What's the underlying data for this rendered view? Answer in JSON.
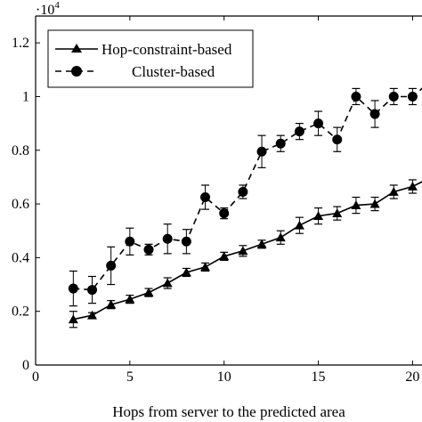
{
  "chart_data": {
    "type": "line",
    "title": "",
    "xlabel": "Hops from server to the predicted area",
    "ylabel": "",
    "y_multiplier": "·10",
    "y_multiplier_exp": "4",
    "xlim": [
      0,
      20.5
    ],
    "ylim": [
      0,
      1.3
    ],
    "x_ticks": [
      0,
      5,
      10,
      15,
      20
    ],
    "x_tick_labels": [
      "0",
      "5",
      "10",
      "15",
      "20"
    ],
    "y_ticks": [
      0,
      0.2,
      0.4,
      0.6,
      0.8,
      1.0,
      1.2
    ],
    "y_tick_labels": [
      "0",
      "0.2",
      "0.4",
      "0.6",
      "0.8",
      "1",
      "1.2"
    ],
    "grid": false,
    "legend_position": "top-left",
    "x": [
      2,
      3,
      4,
      5,
      6,
      7,
      8,
      9,
      10,
      11,
      12,
      13,
      14,
      15,
      16,
      17,
      18,
      19,
      20,
      21
    ],
    "series": [
      {
        "name": "Hop-constraint-based",
        "marker": "triangle",
        "line_style": "solid",
        "color": "#000000",
        "values": [
          0.17,
          0.185,
          0.225,
          0.245,
          0.27,
          0.305,
          0.345,
          0.365,
          0.405,
          0.425,
          0.45,
          0.475,
          0.52,
          0.555,
          0.565,
          0.595,
          0.6,
          0.645,
          0.665,
          0.7
        ],
        "error": [
          0.03,
          0.01,
          0.015,
          0.015,
          0.015,
          0.02,
          0.015,
          0.015,
          0.015,
          0.02,
          0.015,
          0.025,
          0.03,
          0.03,
          0.025,
          0.03,
          0.025,
          0.025,
          0.025,
          0.03
        ]
      },
      {
        "name": "Cluster-based",
        "marker": "circle",
        "line_style": "dashed",
        "color": "#000000",
        "values": [
          0.285,
          0.28,
          0.37,
          0.46,
          0.43,
          0.47,
          0.46,
          0.625,
          0.565,
          0.645,
          0.795,
          0.825,
          0.87,
          0.9,
          0.84,
          1.0,
          0.935,
          1.0,
          1.0,
          1.06
        ],
        "error": [
          0.065,
          0.05,
          0.07,
          0.05,
          0.02,
          0.055,
          0.045,
          0.045,
          0.02,
          0.025,
          0.06,
          0.03,
          0.03,
          0.045,
          0.045,
          0.03,
          0.05,
          0.03,
          0.03,
          0.04
        ]
      }
    ]
  }
}
